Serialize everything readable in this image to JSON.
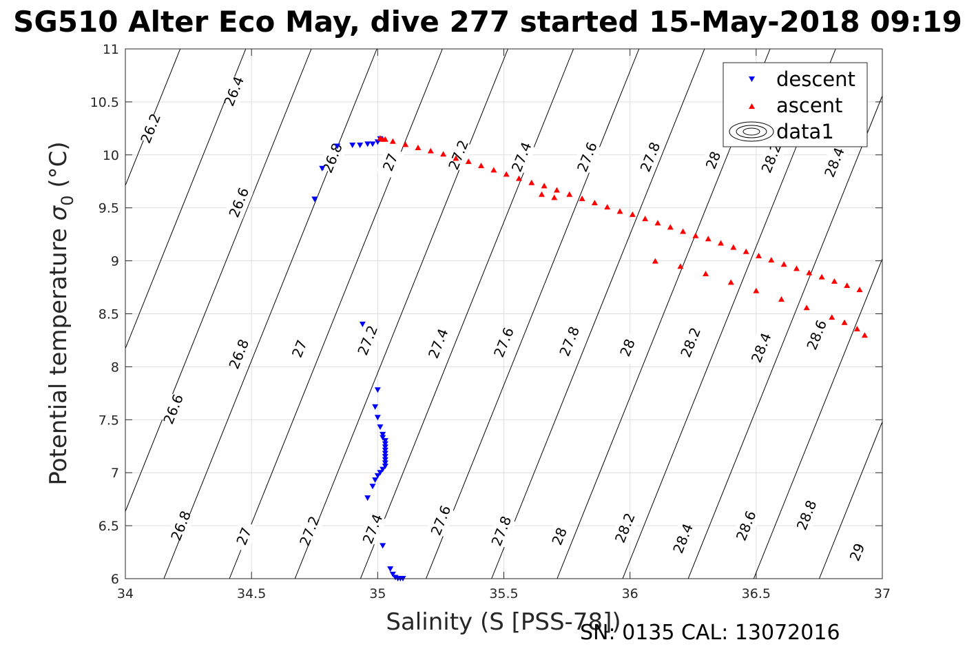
{
  "title": "SG510 Alter Eco May, dive 277 started 15-May-2018 09:19",
  "footer": "SN: 0135  CAL: 13072016",
  "chart_data": {
    "type": "scatter",
    "xlabel": "Salinity (S [PSS-78])",
    "ylabel_main": "Potential temperature ",
    "ylabel_sym": "σ",
    "ylabel_sub": "0",
    "ylabel_unit": " (°C)",
    "xlim": [
      34,
      37
    ],
    "ylim": [
      6,
      11
    ],
    "xticks": [
      "34",
      "34.5",
      "35",
      "35.5",
      "36",
      "36.5",
      "37"
    ],
    "xtick_values": [
      34,
      34.5,
      35,
      35.5,
      36,
      36.5,
      37
    ],
    "yticks": [
      "6",
      "6.5",
      "7",
      "7.5",
      "8",
      "8.5",
      "9",
      "9.5",
      "10",
      "10.5",
      "11"
    ],
    "ytick_values": [
      6,
      6.5,
      7,
      7.5,
      8,
      8.5,
      9,
      9.5,
      10,
      10.5,
      11
    ],
    "grid": true,
    "legend_position": "top-right",
    "legend": [
      "descent",
      "ascent",
      "data1"
    ],
    "density_contours": {
      "levels": [
        26.2,
        26.4,
        26.6,
        26.8,
        27,
        27.2,
        27.4,
        27.6,
        27.8,
        28,
        28.2,
        28.4,
        28.6,
        28.8,
        29
      ],
      "labels": [
        {
          "text": "26.2",
          "x": 34.1,
          "y": 10.25
        },
        {
          "text": "26.4",
          "x": 34.43,
          "y": 10.6
        },
        {
          "text": "26.6",
          "x": 34.45,
          "y": 9.55
        },
        {
          "text": "26.8",
          "x": 34.82,
          "y": 9.97
        },
        {
          "text": "27",
          "x": 35.05,
          "y": 9.93
        },
        {
          "text": "27.2",
          "x": 35.32,
          "y": 10.0
        },
        {
          "text": "27.4",
          "x": 35.57,
          "y": 9.98
        },
        {
          "text": "27.6",
          "x": 35.83,
          "y": 9.98
        },
        {
          "text": "27.8",
          "x": 36.08,
          "y": 9.98
        },
        {
          "text": "28",
          "x": 36.33,
          "y": 9.95
        },
        {
          "text": "28.2",
          "x": 36.56,
          "y": 9.97
        },
        {
          "text": "28.4",
          "x": 36.81,
          "y": 9.93
        },
        {
          "text": "26.8",
          "x": 34.45,
          "y": 8.12
        },
        {
          "text": "27",
          "x": 34.69,
          "y": 8.17
        },
        {
          "text": "27.2",
          "x": 34.96,
          "y": 8.25
        },
        {
          "text": "27.4",
          "x": 35.24,
          "y": 8.22
        },
        {
          "text": "27.6",
          "x": 35.5,
          "y": 8.23
        },
        {
          "text": "27.8",
          "x": 35.76,
          "y": 8.24
        },
        {
          "text": "28",
          "x": 35.99,
          "y": 8.18
        },
        {
          "text": "28.2",
          "x": 36.24,
          "y": 8.23
        },
        {
          "text": "28.4",
          "x": 36.52,
          "y": 8.18
        },
        {
          "text": "28.6",
          "x": 36.74,
          "y": 8.3
        },
        {
          "text": "26.6",
          "x": 34.19,
          "y": 7.6
        },
        {
          "text": "26.8",
          "x": 34.22,
          "y": 6.5
        },
        {
          "text": "27",
          "x": 34.47,
          "y": 6.4
        },
        {
          "text": "27.2",
          "x": 34.73,
          "y": 6.45
        },
        {
          "text": "27.4",
          "x": 34.98,
          "y": 6.47
        },
        {
          "text": "27.6",
          "x": 35.25,
          "y": 6.55
        },
        {
          "text": "27.8",
          "x": 35.49,
          "y": 6.45
        },
        {
          "text": "28",
          "x": 35.72,
          "y": 6.4
        },
        {
          "text": "28.2",
          "x": 35.98,
          "y": 6.48
        },
        {
          "text": "28.4",
          "x": 36.21,
          "y": 6.38
        },
        {
          "text": "28.6",
          "x": 36.46,
          "y": 6.5
        },
        {
          "text": "28.8",
          "x": 36.7,
          "y": 6.6
        },
        {
          "text": "29",
          "x": 36.9,
          "y": 6.25
        }
      ]
    },
    "series": [
      {
        "name": "descent",
        "color": "#0000ff",
        "marker": "triangle-down",
        "points": [
          [
            34.75,
            9.58
          ],
          [
            34.78,
            9.87
          ],
          [
            34.84,
            10.08
          ],
          [
            34.9,
            10.09
          ],
          [
            34.93,
            10.09
          ],
          [
            34.96,
            10.1
          ],
          [
            34.98,
            10.1
          ],
          [
            35.0,
            10.12
          ],
          [
            35.01,
            10.15
          ],
          [
            34.94,
            8.4
          ],
          [
            35.0,
            7.78
          ],
          [
            34.99,
            7.62
          ],
          [
            35.0,
            7.52
          ],
          [
            35.01,
            7.43
          ],
          [
            35.02,
            7.36
          ],
          [
            35.02,
            7.33
          ],
          [
            35.03,
            7.3
          ],
          [
            35.03,
            7.27
          ],
          [
            35.03,
            7.24
          ],
          [
            35.03,
            7.21
          ],
          [
            35.03,
            7.18
          ],
          [
            35.03,
            7.15
          ],
          [
            35.03,
            7.12
          ],
          [
            35.03,
            7.09
          ],
          [
            35.03,
            7.06
          ],
          [
            35.02,
            7.03
          ],
          [
            35.01,
            7.0
          ],
          [
            35.0,
            6.97
          ],
          [
            34.99,
            6.93
          ],
          [
            34.98,
            6.87
          ],
          [
            34.96,
            6.76
          ],
          [
            35.02,
            6.31
          ],
          [
            35.05,
            6.09
          ],
          [
            35.06,
            6.04
          ],
          [
            35.07,
            6.01
          ],
          [
            35.08,
            6.0
          ],
          [
            35.09,
            6.0
          ],
          [
            35.1,
            6.0
          ]
        ]
      },
      {
        "name": "ascent",
        "color": "#ff0000",
        "marker": "triangle-up",
        "points": [
          [
            35.01,
            10.16
          ],
          [
            35.02,
            10.15
          ],
          [
            35.03,
            10.15
          ],
          [
            35.06,
            10.13
          ],
          [
            35.11,
            10.1
          ],
          [
            35.16,
            10.07
          ],
          [
            35.21,
            10.04
          ],
          [
            35.26,
            10.01
          ],
          [
            35.31,
            9.97
          ],
          [
            35.36,
            9.94
          ],
          [
            35.41,
            9.9
          ],
          [
            35.46,
            9.86
          ],
          [
            35.51,
            9.82
          ],
          [
            35.56,
            9.78
          ],
          [
            35.61,
            9.74
          ],
          [
            35.66,
            9.71
          ],
          [
            35.71,
            9.67
          ],
          [
            35.76,
            9.63
          ],
          [
            35.81,
            9.59
          ],
          [
            35.86,
            9.55
          ],
          [
            35.91,
            9.51
          ],
          [
            35.96,
            9.47
          ],
          [
            36.01,
            9.44
          ],
          [
            36.06,
            9.4
          ],
          [
            36.11,
            9.36
          ],
          [
            36.16,
            9.32
          ],
          [
            36.21,
            9.28
          ],
          [
            36.26,
            9.24
          ],
          [
            36.31,
            9.21
          ],
          [
            36.36,
            9.17
          ],
          [
            36.41,
            9.13
          ],
          [
            36.46,
            9.09
          ],
          [
            36.51,
            9.05
          ],
          [
            36.56,
            9.01
          ],
          [
            36.61,
            8.97
          ],
          [
            36.66,
            8.93
          ],
          [
            36.71,
            8.89
          ],
          [
            36.76,
            8.85
          ],
          [
            36.81,
            8.81
          ],
          [
            36.86,
            8.77
          ],
          [
            36.91,
            8.73
          ],
          [
            35.65,
            9.63
          ],
          [
            35.7,
            9.6
          ],
          [
            36.1,
            9.0
          ],
          [
            36.2,
            8.95
          ],
          [
            36.3,
            8.88
          ],
          [
            36.4,
            8.8
          ],
          [
            36.5,
            8.72
          ],
          [
            36.6,
            8.64
          ],
          [
            36.7,
            8.56
          ],
          [
            36.8,
            8.47
          ],
          [
            36.85,
            8.42
          ],
          [
            36.9,
            8.36
          ],
          [
            36.93,
            8.3
          ]
        ]
      }
    ]
  }
}
